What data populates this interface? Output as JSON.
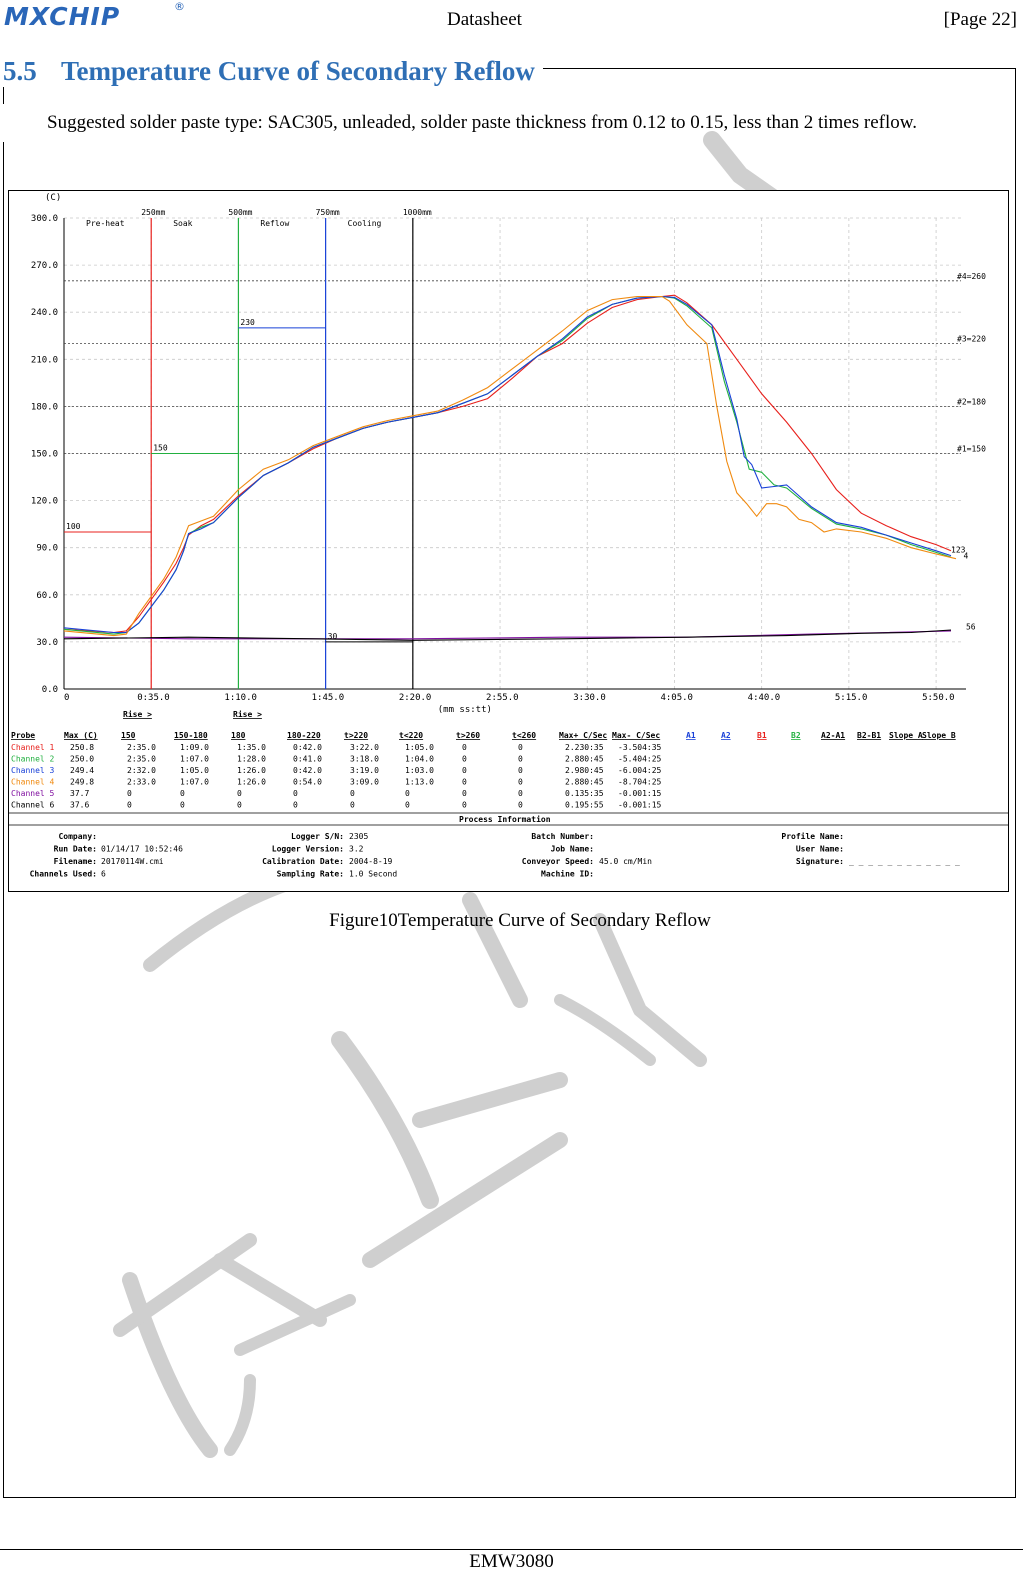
{
  "header": {
    "logo_text": "MXCHIP",
    "logo_reg": "®",
    "doc_type": "Datasheet",
    "page_label": "[Page  22]"
  },
  "section": {
    "number": "5.5",
    "title": "Temperature Curve of Secondary Reflow",
    "paragraph": "Suggested solder paste type: SAC305, unleaded, solder paste thickness from 0.12 to 0.15, less than 2 times reflow."
  },
  "caption": "Figure10Temperature Curve of Secondary Reflow",
  "footer": "EMW3080",
  "colors": {
    "accent": "#2f6fb5",
    "ch1": "#e8201c",
    "ch2": "#22b040",
    "ch3": "#1840d8",
    "ch4": "#f08a10",
    "ch5": "#8010a0",
    "ch6": "#000000",
    "watermark": "#c8c8c8"
  },
  "chart_data": {
    "type": "line",
    "yunit": "(C)",
    "xunit": "(mm ss:tt)",
    "y_ticks": [
      "300.0",
      "270.0",
      "240.0",
      "210.0",
      "180.0",
      "150.0",
      "120.0",
      "90.0",
      "60.0",
      "30.0",
      "0.0"
    ],
    "x_ticks": [
      "0",
      "0:35.0",
      "1:10.0",
      "1:45.0",
      "2:20.0",
      "2:55.0",
      "3:30.0",
      "4:05.0",
      "4:40.0",
      "5:15.0",
      "5:50.0"
    ],
    "ylim": [
      0,
      300
    ],
    "xlim": [
      0,
      360
    ],
    "zones": [
      {
        "label": "Pre-heat",
        "dist": "250mm",
        "x": 35,
        "color": "#e8201c",
        "level": 100,
        "level_label": "100"
      },
      {
        "label": "Soak",
        "dist": "500mm",
        "x": 70,
        "color": "#22b040",
        "level": 150,
        "level_label": "150"
      },
      {
        "label": "Reflow",
        "dist": "750mm",
        "x": 105,
        "color": "#1840d8",
        "level": 230,
        "level_label": "230"
      },
      {
        "label": "Cooling",
        "dist": "1000mm",
        "x": 140,
        "color": "#000000",
        "level": 30,
        "level_label": "30"
      }
    ],
    "thresholds": [
      {
        "label": "#4=260",
        "y": 260
      },
      {
        "label": "#3=220",
        "y": 220
      },
      {
        "label": "#2=180",
        "y": 180
      },
      {
        "label": "#1=150",
        "y": 150
      }
    ],
    "end_labels": [
      {
        "text": "123",
        "x": 356,
        "y": 87
      },
      {
        "text": "4",
        "x": 361,
        "y": 83
      },
      {
        "text": "56",
        "x": 362,
        "y": 38
      }
    ],
    "series": [
      {
        "name": "Channel 1",
        "color": "#e8201c",
        "points": [
          [
            0,
            38
          ],
          [
            20,
            36
          ],
          [
            25,
            37
          ],
          [
            30,
            46
          ],
          [
            40,
            68
          ],
          [
            45,
            80
          ],
          [
            48,
            90
          ],
          [
            50,
            98
          ],
          [
            55,
            104
          ],
          [
            60,
            108
          ],
          [
            70,
            123
          ],
          [
            80,
            136
          ],
          [
            90,
            144
          ],
          [
            100,
            153
          ],
          [
            110,
            160
          ],
          [
            120,
            166
          ],
          [
            130,
            170
          ],
          [
            140,
            173
          ],
          [
            150,
            176
          ],
          [
            160,
            180
          ],
          [
            170,
            185
          ],
          [
            180,
            198
          ],
          [
            190,
            212
          ],
          [
            200,
            220
          ],
          [
            210,
            233
          ],
          [
            220,
            243
          ],
          [
            230,
            248
          ],
          [
            240,
            250
          ],
          [
            245,
            250.8
          ],
          [
            250,
            246
          ],
          [
            260,
            232
          ],
          [
            270,
            210
          ],
          [
            280,
            188
          ],
          [
            290,
            170
          ],
          [
            300,
            150
          ],
          [
            310,
            127
          ],
          [
            320,
            112
          ],
          [
            330,
            104
          ],
          [
            340,
            97
          ],
          [
            350,
            92
          ],
          [
            356,
            88
          ]
        ]
      },
      {
        "name": "Channel 2",
        "color": "#22b040",
        "points": [
          [
            0,
            38
          ],
          [
            20,
            35
          ],
          [
            25,
            36
          ],
          [
            30,
            42
          ],
          [
            40,
            63
          ],
          [
            45,
            76
          ],
          [
            48,
            88
          ],
          [
            50,
            99
          ],
          [
            55,
            103
          ],
          [
            60,
            106
          ],
          [
            70,
            122
          ],
          [
            80,
            136
          ],
          [
            90,
            144
          ],
          [
            100,
            154
          ],
          [
            110,
            160
          ],
          [
            120,
            166
          ],
          [
            130,
            170
          ],
          [
            140,
            173
          ],
          [
            150,
            176
          ],
          [
            160,
            182
          ],
          [
            170,
            188
          ],
          [
            180,
            200
          ],
          [
            190,
            212
          ],
          [
            200,
            222
          ],
          [
            210,
            236
          ],
          [
            220,
            245
          ],
          [
            230,
            249
          ],
          [
            240,
            250
          ],
          [
            245,
            249
          ],
          [
            250,
            244
          ],
          [
            260,
            230
          ],
          [
            265,
            196
          ],
          [
            270,
            170
          ],
          [
            275,
            140
          ],
          [
            280,
            138
          ],
          [
            285,
            130
          ],
          [
            290,
            128
          ],
          [
            300,
            115
          ],
          [
            310,
            105
          ],
          [
            320,
            102
          ],
          [
            330,
            98
          ],
          [
            340,
            92
          ],
          [
            350,
            87
          ],
          [
            356,
            84
          ]
        ]
      },
      {
        "name": "Channel 3",
        "color": "#1840d8",
        "points": [
          [
            0,
            39
          ],
          [
            20,
            36
          ],
          [
            25,
            36
          ],
          [
            30,
            42
          ],
          [
            40,
            63
          ],
          [
            45,
            76
          ],
          [
            48,
            88
          ],
          [
            50,
            99
          ],
          [
            55,
            102
          ],
          [
            60,
            106
          ],
          [
            70,
            122
          ],
          [
            80,
            136
          ],
          [
            90,
            144
          ],
          [
            100,
            154
          ],
          [
            110,
            160
          ],
          [
            120,
            166
          ],
          [
            130,
            170
          ],
          [
            140,
            173
          ],
          [
            150,
            176
          ],
          [
            160,
            182
          ],
          [
            170,
            188
          ],
          [
            180,
            200
          ],
          [
            190,
            212
          ],
          [
            200,
            223
          ],
          [
            210,
            237
          ],
          [
            220,
            245
          ],
          [
            230,
            249
          ],
          [
            240,
            250
          ],
          [
            245,
            249.4
          ],
          [
            250,
            245
          ],
          [
            260,
            232
          ],
          [
            265,
            200
          ],
          [
            270,
            172
          ],
          [
            273,
            148
          ],
          [
            276,
            143
          ],
          [
            280,
            128
          ],
          [
            285,
            129
          ],
          [
            290,
            130
          ],
          [
            300,
            116
          ],
          [
            310,
            106
          ],
          [
            320,
            103
          ],
          [
            330,
            98
          ],
          [
            340,
            93
          ],
          [
            350,
            88
          ],
          [
            356,
            85
          ]
        ]
      },
      {
        "name": "Channel 4",
        "color": "#f08a10",
        "points": [
          [
            0,
            37
          ],
          [
            20,
            34
          ],
          [
            25,
            35
          ],
          [
            30,
            48
          ],
          [
            40,
            70
          ],
          [
            45,
            84
          ],
          [
            48,
            96
          ],
          [
            50,
            104
          ],
          [
            55,
            107
          ],
          [
            60,
            110
          ],
          [
            70,
            127
          ],
          [
            80,
            140
          ],
          [
            90,
            146
          ],
          [
            100,
            155
          ],
          [
            110,
            161
          ],
          [
            120,
            167
          ],
          [
            130,
            171
          ],
          [
            140,
            174
          ],
          [
            150,
            177
          ],
          [
            160,
            184
          ],
          [
            170,
            192
          ],
          [
            180,
            204
          ],
          [
            190,
            216
          ],
          [
            200,
            228
          ],
          [
            210,
            241
          ],
          [
            220,
            248
          ],
          [
            230,
            250
          ],
          [
            240,
            250
          ],
          [
            243,
            247
          ],
          [
            250,
            232
          ],
          [
            258,
            220
          ],
          [
            262,
            180
          ],
          [
            266,
            145
          ],
          [
            270,
            125
          ],
          [
            274,
            118
          ],
          [
            278,
            110
          ],
          [
            282,
            118
          ],
          [
            286,
            118
          ],
          [
            290,
            116
          ],
          [
            295,
            108
          ],
          [
            300,
            106
          ],
          [
            305,
            100
          ],
          [
            310,
            102
          ],
          [
            320,
            100
          ],
          [
            330,
            96
          ],
          [
            340,
            90
          ],
          [
            350,
            86
          ],
          [
            358,
            83
          ]
        ]
      },
      {
        "name": "Channel 5",
        "color": "#8010a0",
        "points": [
          [
            0,
            33
          ],
          [
            50,
            32
          ],
          [
            100,
            32
          ],
          [
            140,
            32
          ],
          [
            200,
            33
          ],
          [
            250,
            33
          ],
          [
            300,
            35
          ],
          [
            330,
            36
          ],
          [
            356,
            37
          ]
        ]
      },
      {
        "name": "Channel 6",
        "color": "#000000",
        "points": [
          [
            0,
            32
          ],
          [
            50,
            33
          ],
          [
            100,
            32
          ],
          [
            140,
            31
          ],
          [
            200,
            32
          ],
          [
            250,
            33
          ],
          [
            290,
            34
          ],
          [
            320,
            35.5
          ],
          [
            340,
            36
          ],
          [
            356,
            37.6
          ]
        ]
      }
    ],
    "table": {
      "headers": [
        "Probe",
        "Max (C)",
        "150",
        "150-180",
        "180",
        "180-220",
        "t>220",
        "t<220",
        "t>260",
        "t<260",
        "Max+ C/Sec",
        "Max- C/Sec",
        "A1",
        "A2",
        "B1",
        "B2",
        "A2-A1",
        "B2-B1",
        "Slope A",
        "Slope B"
      ],
      "group_labels": [
        {
          "text": "Rise >",
          "col": 2
        },
        {
          "text": "Rise >",
          "col": 4
        }
      ],
      "rows": [
        {
          "color": "#e8201c",
          "cells": [
            "Channel 1",
            "250.8",
            "2:35.0",
            "1:09.0",
            "1:35.0",
            "0:42.0",
            "3:22.0",
            "1:05.0",
            "0",
            "0",
            "2.230:35",
            "-3.504:35"
          ]
        },
        {
          "color": "#22b040",
          "cells": [
            "Channel 2",
            "250.0",
            "2:35.0",
            "1:07.0",
            "1:28.0",
            "0:41.0",
            "3:18.0",
            "1:04.0",
            "0",
            "0",
            "2.880:45",
            "-5.404:25"
          ]
        },
        {
          "color": "#1840d8",
          "cells": [
            "Channel 3",
            "249.4",
            "2:32.0",
            "1:05.0",
            "1:26.0",
            "0:42.0",
            "3:19.0",
            "1:03.0",
            "0",
            "0",
            "2.980:45",
            "-6.004:25"
          ]
        },
        {
          "color": "#f08a10",
          "cells": [
            "Channel 4",
            "249.8",
            "2:33.0",
            "1:07.0",
            "1:26.0",
            "0:54.0",
            "3:09.0",
            "1:13.0",
            "0",
            "0",
            "2.880:45",
            "-8.704:25"
          ]
        },
        {
          "color": "#8010a0",
          "cells": [
            "Channel 5",
            "37.7",
            "0",
            "0",
            "0",
            "0",
            "0",
            "0",
            "0",
            "0",
            "0.135:35",
            "-0.001:15"
          ]
        },
        {
          "color": "#000000",
          "cells": [
            "Channel 6",
            "37.6",
            "0",
            "0",
            "0",
            "0",
            "0",
            "0",
            "0",
            "0",
            "0.195:55",
            "-0.001:15"
          ]
        }
      ]
    },
    "process_info": {
      "title": "Process Information",
      "fields": [
        {
          "label": "Company:",
          "value": ""
        },
        {
          "label": "Run Date:",
          "value": "01/14/17 10:52:46"
        },
        {
          "label": "Filename:",
          "value": "20170114W.cmi"
        },
        {
          "label": "Channels Used:",
          "value": "6"
        },
        {
          "label": "Logger S/N:",
          "value": "2305"
        },
        {
          "label": "Logger Version:",
          "value": "3.2"
        },
        {
          "label": "Calibration Date:",
          "value": "2004-8-19"
        },
        {
          "label": "Sampling Rate:",
          "value": "1.0 Second"
        },
        {
          "label": "Batch Number:",
          "value": ""
        },
        {
          "label": "Job Name:",
          "value": ""
        },
        {
          "label": "Conveyor Speed:",
          "value": "45.0 cm/Min"
        },
        {
          "label": "Machine ID:",
          "value": ""
        },
        {
          "label": "Profile Name:",
          "value": ""
        },
        {
          "label": "User Name:",
          "value": ""
        },
        {
          "label": "Signature:",
          "value": "_ _ _ _ _ _ _ _ _ _ _ _"
        }
      ]
    }
  }
}
